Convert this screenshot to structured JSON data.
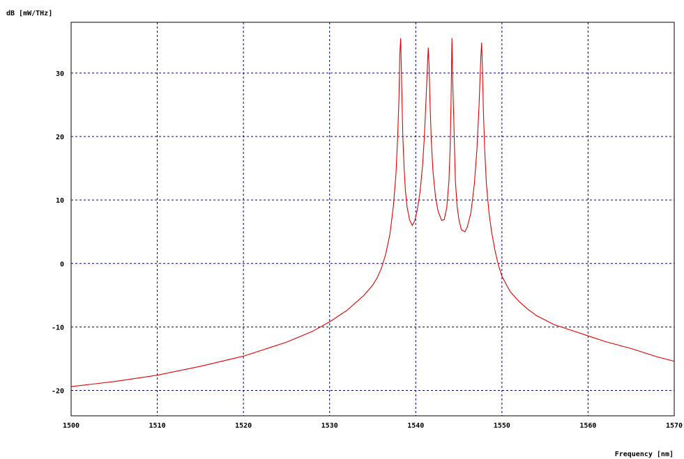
{
  "chart_data": {
    "type": "line",
    "title": "",
    "xlabel": "Frequency [nm]",
    "ylabel": "dB [mW/THz]",
    "xlim": [
      1500,
      1570
    ],
    "ylim": [
      -24,
      38
    ],
    "x_ticks": [
      1500,
      1510,
      1520,
      1530,
      1540,
      1550,
      1560,
      1570
    ],
    "y_ticks": [
      30,
      20,
      10,
      0,
      -10,
      -20
    ],
    "grid": true,
    "grid_style": "dashed",
    "colors": {
      "grid": "#00007a",
      "series": "#e00000",
      "frame": "#000000"
    },
    "series": [
      {
        "x": [
          1500,
          1505,
          1510,
          1515,
          1520,
          1525,
          1528,
          1530,
          1532,
          1534,
          1535,
          1535.5,
          1536,
          1536.5,
          1537,
          1537.4,
          1537.7,
          1537.9,
          1538.05,
          1538.15,
          1538.25,
          1538.3,
          1538.4,
          1538.5,
          1538.65,
          1538.8,
          1539.0,
          1539.3,
          1539.6,
          1539.9,
          1540.2,
          1540.5,
          1540.8,
          1541.0,
          1541.2,
          1541.35,
          1541.45,
          1541.55,
          1541.65,
          1541.8,
          1542.0,
          1542.3,
          1542.6,
          1543.0,
          1543.3,
          1543.6,
          1543.85,
          1544.0,
          1544.1,
          1544.2,
          1544.25,
          1544.3,
          1544.4,
          1544.5,
          1544.6,
          1544.8,
          1545.0,
          1545.3,
          1545.7,
          1546.0,
          1546.4,
          1546.8,
          1547.1,
          1547.35,
          1547.55,
          1547.65,
          1547.75,
          1547.85,
          1548.0,
          1548.2,
          1548.5,
          1548.8,
          1549.2,
          1549.6,
          1550.0,
          1550.5,
          1551,
          1552,
          1553,
          1554,
          1556,
          1558,
          1560,
          1562,
          1565,
          1568,
          1570
        ],
        "y": [
          -19.4,
          -18.6,
          -17.6,
          -16.2,
          -14.6,
          -12.4,
          -10.7,
          -9.2,
          -7.4,
          -5.0,
          -3.4,
          -2.3,
          -0.8,
          1.4,
          4.6,
          9.0,
          14.0,
          20.0,
          26.0,
          33.0,
          35.5,
          32.5,
          26.0,
          20.0,
          15.0,
          11.5,
          8.8,
          6.8,
          6.0,
          6.8,
          8.6,
          11.3,
          15.6,
          20.0,
          26.0,
          31.0,
          34.0,
          31.0,
          25.5,
          19.5,
          14.5,
          10.4,
          8.2,
          6.8,
          6.9,
          8.8,
          13.0,
          18.5,
          26.0,
          35.5,
          32.0,
          28.0,
          23.5,
          18.0,
          13.0,
          9.0,
          7.0,
          5.3,
          5.0,
          5.8,
          8.0,
          12.5,
          18.0,
          25.0,
          32.5,
          34.8,
          30.0,
          24.0,
          18.0,
          12.5,
          8.0,
          5.0,
          2.0,
          -0.3,
          -2.0,
          -3.3,
          -4.5,
          -6.0,
          -7.2,
          -8.2,
          -9.6,
          -10.5,
          -11.4,
          -12.3,
          -13.4,
          -14.7,
          -15.4
        ]
      }
    ]
  }
}
